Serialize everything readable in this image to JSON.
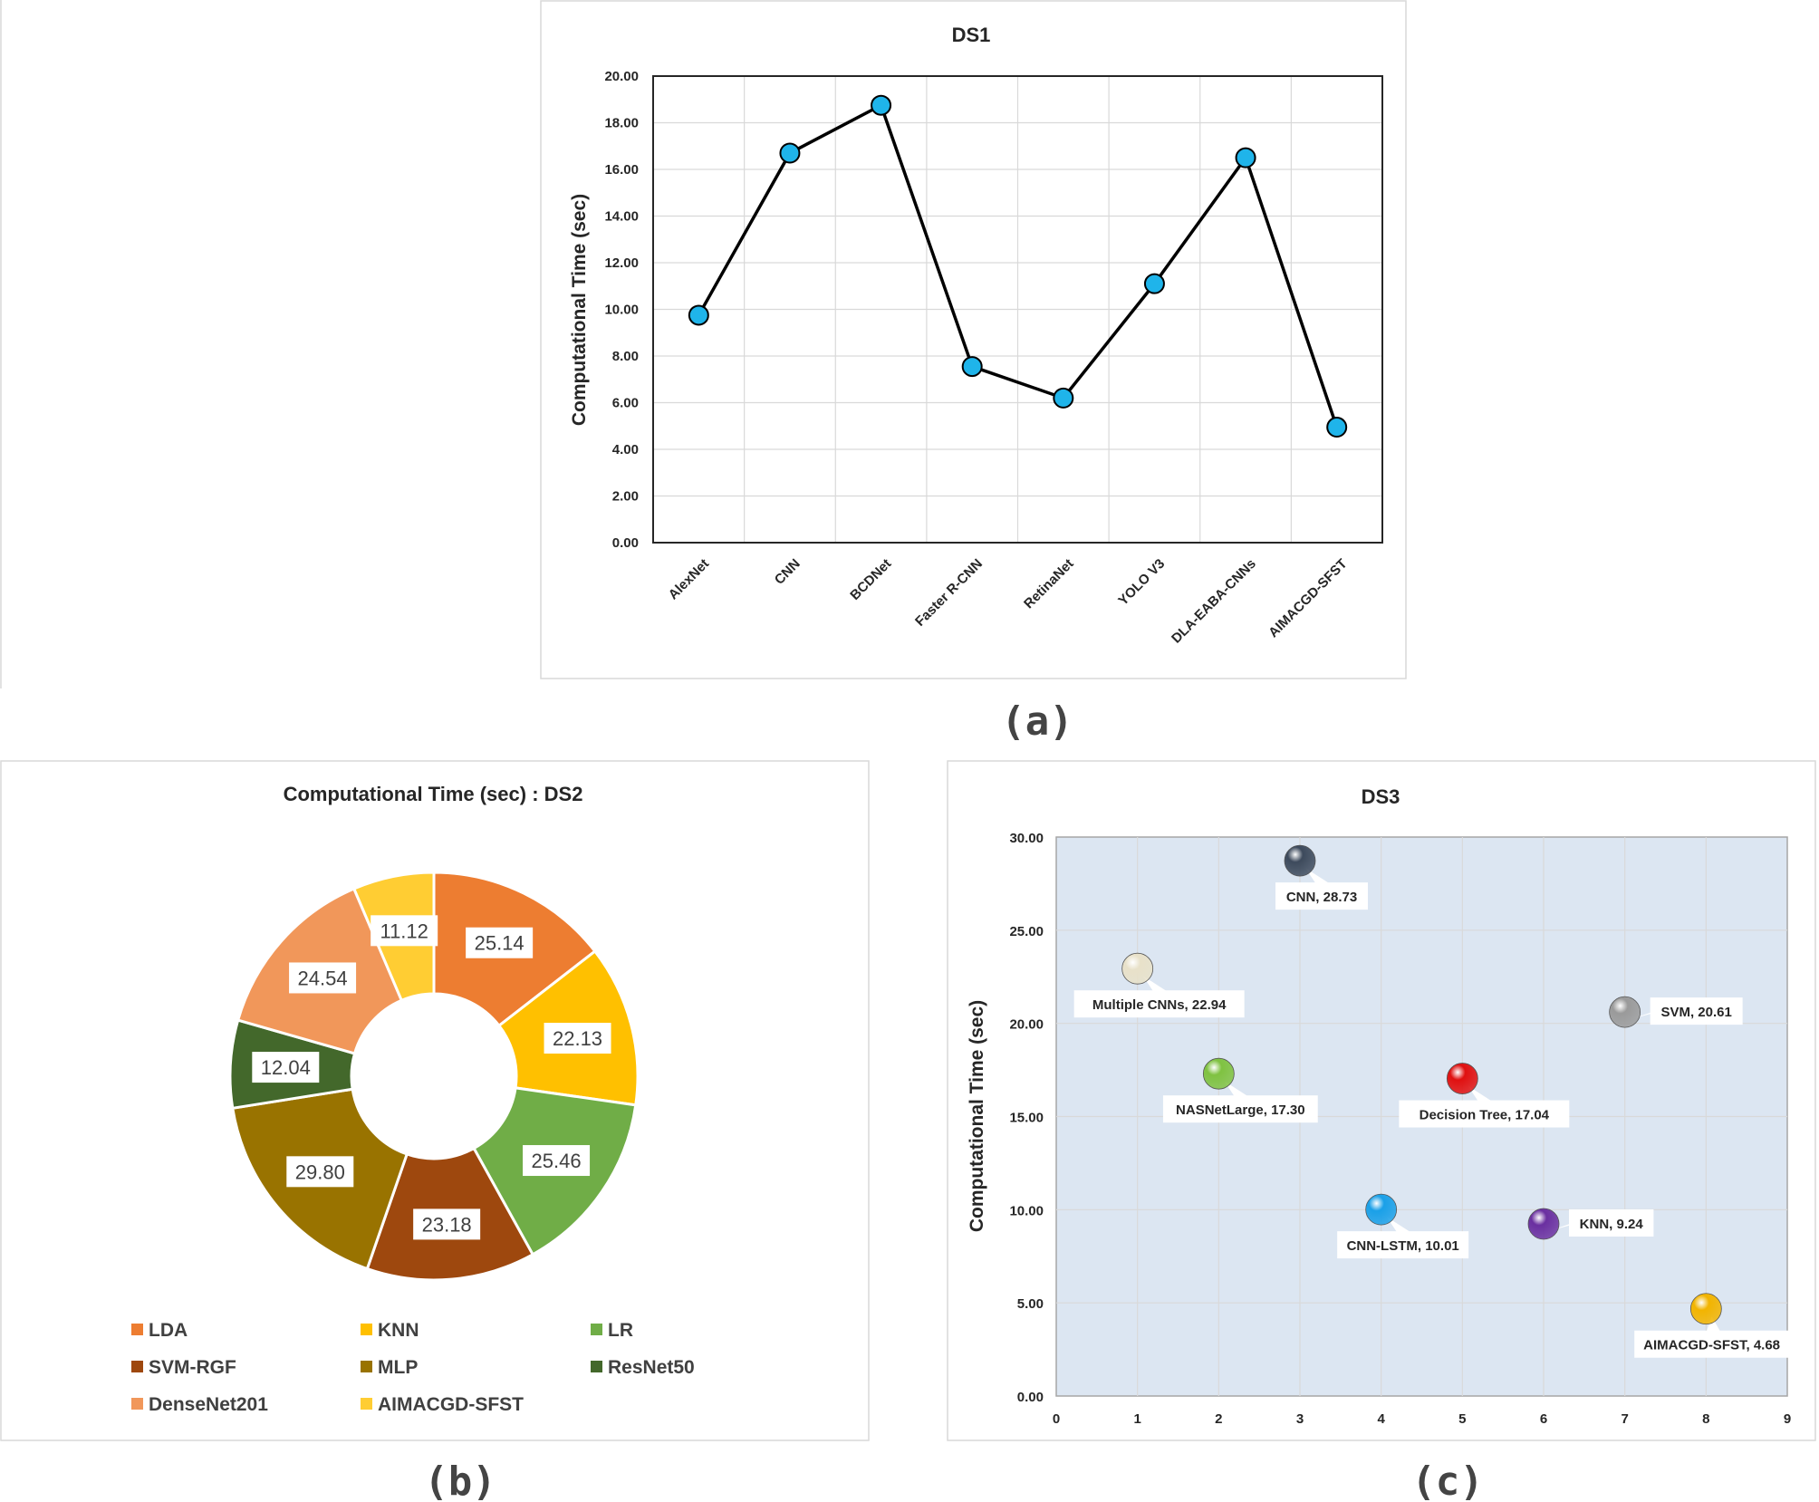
{
  "captions": {
    "a": "(a)",
    "b": "(b)",
    "c": "(c)"
  },
  "chart_data": [
    {
      "id": "a",
      "type": "line",
      "title": "DS1",
      "xlabel": "",
      "ylabel": "Computational  Time (sec)",
      "categories": [
        "AlexNet",
        "CNN",
        "BCDNet",
        "Faster R-CNN",
        "RetinaNet",
        "YOLO V3",
        "DLA-EABA-CNNs",
        "AIMACGD-SFST"
      ],
      "values": [
        9.75,
        16.7,
        18.75,
        7.55,
        6.2,
        11.1,
        16.5,
        4.95
      ],
      "ylim": [
        0,
        20
      ],
      "yticks": [
        "0.00",
        "2.00",
        "4.00",
        "6.00",
        "8.00",
        "10.00",
        "12.00",
        "14.00",
        "16.00",
        "18.00",
        "20.00"
      ],
      "grid": true,
      "colors": {
        "marker": "#1fb4ea",
        "line": "#000000"
      }
    },
    {
      "id": "b",
      "type": "pie",
      "title": "Computational Time (sec) : DS2",
      "categories": [
        "LDA",
        "KNN",
        "LR",
        "SVM-RGF",
        "MLP",
        "ResNet50",
        "DenseNet201",
        "AIMACGD-SFST"
      ],
      "values": [
        25.14,
        22.13,
        25.46,
        23.18,
        29.8,
        12.04,
        24.54,
        11.12
      ],
      "labels": [
        "25.14",
        "22.13",
        "25.46",
        "23.18",
        "29.80",
        "12.04",
        "24.54",
        "11.12"
      ],
      "colors": [
        "#ed7d31",
        "#ffc000",
        "#70ad47",
        "#9e480e",
        "#997300",
        "#43682b",
        "#f1975a",
        "#ffcd33"
      ],
      "legend": "bottom"
    },
    {
      "id": "c",
      "type": "scatter",
      "title": "DS3",
      "xlabel": "",
      "ylabel": "Computational Time (sec)",
      "xlim": [
        0,
        9
      ],
      "ylim": [
        0,
        30
      ],
      "xticks": [
        "0",
        "1",
        "2",
        "3",
        "4",
        "5",
        "6",
        "7",
        "8",
        "9"
      ],
      "yticks": [
        "0.00",
        "5.00",
        "10.00",
        "15.00",
        "20.00",
        "25.00",
        "30.00"
      ],
      "grid": true,
      "points": [
        {
          "name": "CNN",
          "x": 3,
          "y": 28.73,
          "label": "CNN, 28.73",
          "color": "#3d4a5c"
        },
        {
          "name": "Multiple CNNs",
          "x": 1,
          "y": 22.94,
          "label": "Multiple CNNs, 22.94",
          "color": "#e8e1c9"
        },
        {
          "name": "SVM",
          "x": 7,
          "y": 20.61,
          "label": "SVM, 20.61",
          "color": "#9a9a9a"
        },
        {
          "name": "NASNetLarge",
          "x": 2,
          "y": 17.3,
          "label": "NASNetLarge, 17.30",
          "color": "#7fc241"
        },
        {
          "name": "Decision Tree",
          "x": 5,
          "y": 17.04,
          "label": "Decision Tree, 17.04",
          "color": "#e01010"
        },
        {
          "name": "CNN-LSTM",
          "x": 4,
          "y": 10.01,
          "label": "CNN-LSTM, 10.01",
          "color": "#1aa0e8"
        },
        {
          "name": "KNN",
          "x": 6,
          "y": 9.24,
          "label": "KNN, 9.24",
          "color": "#6a2fa0"
        },
        {
          "name": "AIMACGD-SFST",
          "x": 8,
          "y": 4.68,
          "label": "AIMACGD-SFST, 4.68",
          "color": "#f2b400"
        }
      ],
      "colors": {
        "plot_bg": "#dce6f2"
      }
    }
  ]
}
